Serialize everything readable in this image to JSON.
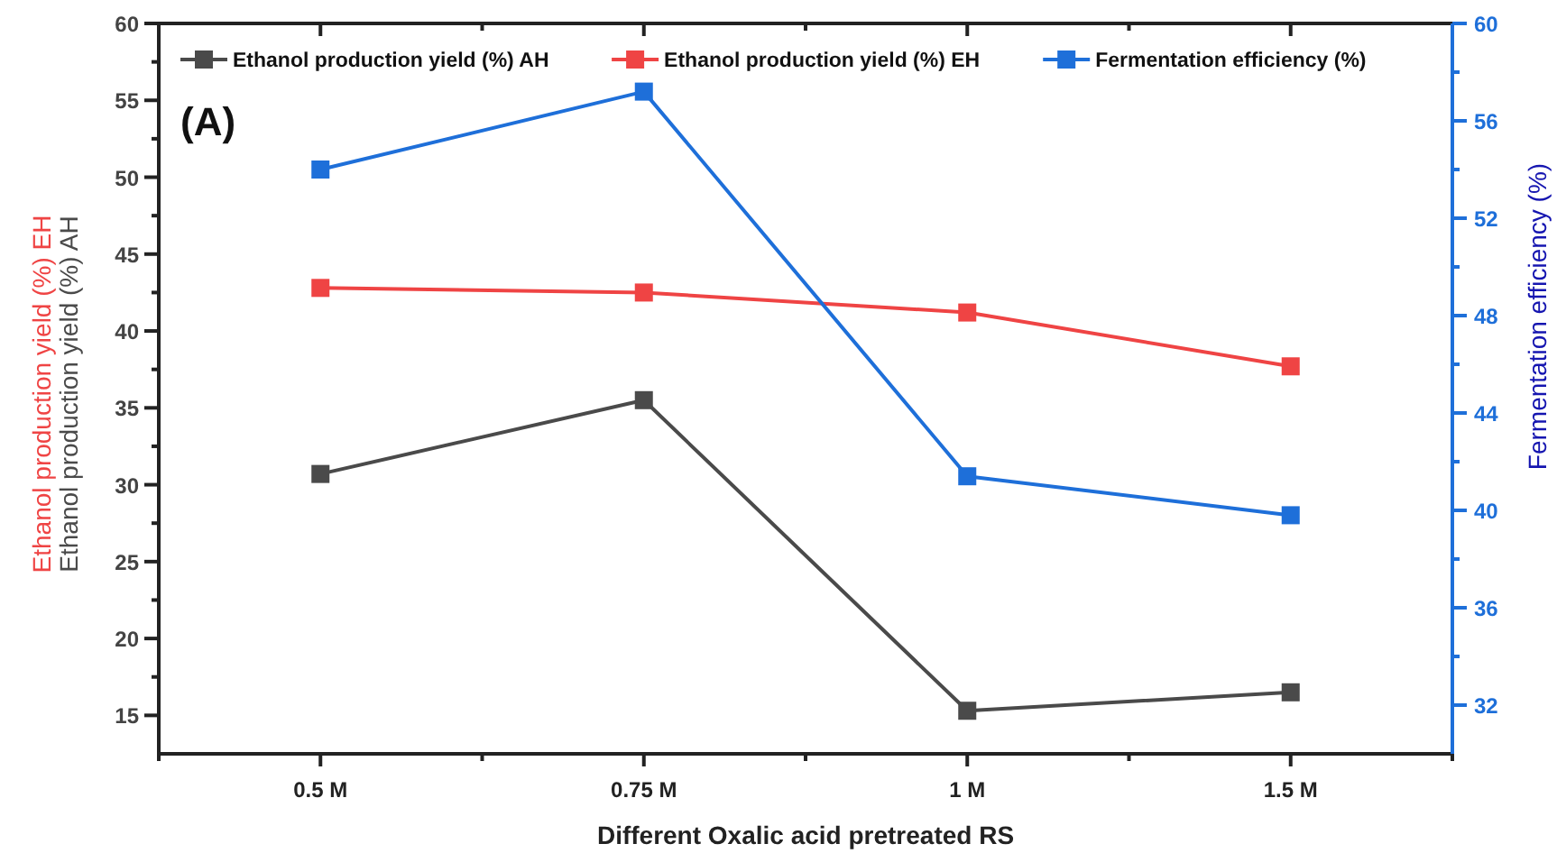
{
  "chart_data": {
    "type": "line",
    "xlabel": "Different Oxalic acid pretreated RS",
    "ylabel": "Ethanol production yield (%) EH\nEthanol production yield (%) AH",
    "y2label": "Fermentation efficiency (%)",
    "annotations": [
      "(A)"
    ],
    "categories": [
      "0.5 M",
      "0.75 M",
      "1 M",
      "1.5 M"
    ],
    "series": [
      {
        "name": "Ethanol production yield (%) AH",
        "color": "#4a4a4a",
        "values": [
          30.7,
          35.5,
          15.3,
          16.5
        ]
      },
      {
        "name": "Ethanol production yield (%) EH",
        "color": "#ef4444",
        "values": [
          42.8,
          42.5,
          41.2,
          37.7
        ]
      },
      {
        "name": "Fermentation efficiency (%)",
        "color": "#1e6fd9",
        "axis": "y2",
        "values": [
          54.0,
          57.2,
          41.4,
          39.8
        ]
      }
    ],
    "ylim": [
      12.5,
      60
    ],
    "yticks": [
      {
        "value": 15,
        "label": "15"
      },
      {
        "value": 17.5,
        "label": null
      },
      20,
      {
        "value": 22.5,
        "label": null
      },
      25,
      {
        "value": 27.5,
        "label": null
      },
      30,
      {
        "value": 32.5,
        "label": null
      },
      35,
      {
        "value": 37.5,
        "label": null
      },
      40,
      {
        "value": 42.5,
        "label": null
      },
      45,
      {
        "value": 47.5,
        "label": null
      },
      50,
      {
        "value": 52.5,
        "label": null
      },
      55,
      {
        "value": 57.5,
        "label": null
      },
      60
    ],
    "y2lim": [
      30,
      60
    ],
    "y2ticks": [
      32,
      {
        "value": 34,
        "label": null
      },
      36,
      {
        "value": 38,
        "label": null
      },
      40,
      {
        "value": 42,
        "label": null
      },
      44,
      {
        "value": 46,
        "label": null
      },
      48,
      {
        "value": 50,
        "label": null
      },
      52,
      {
        "value": 54,
        "label": null
      },
      56,
      {
        "value": 58,
        "label": null
      },
      60
    ],
    "marker": "square",
    "line_style": "solid",
    "grid": false,
    "legend": "top"
  }
}
